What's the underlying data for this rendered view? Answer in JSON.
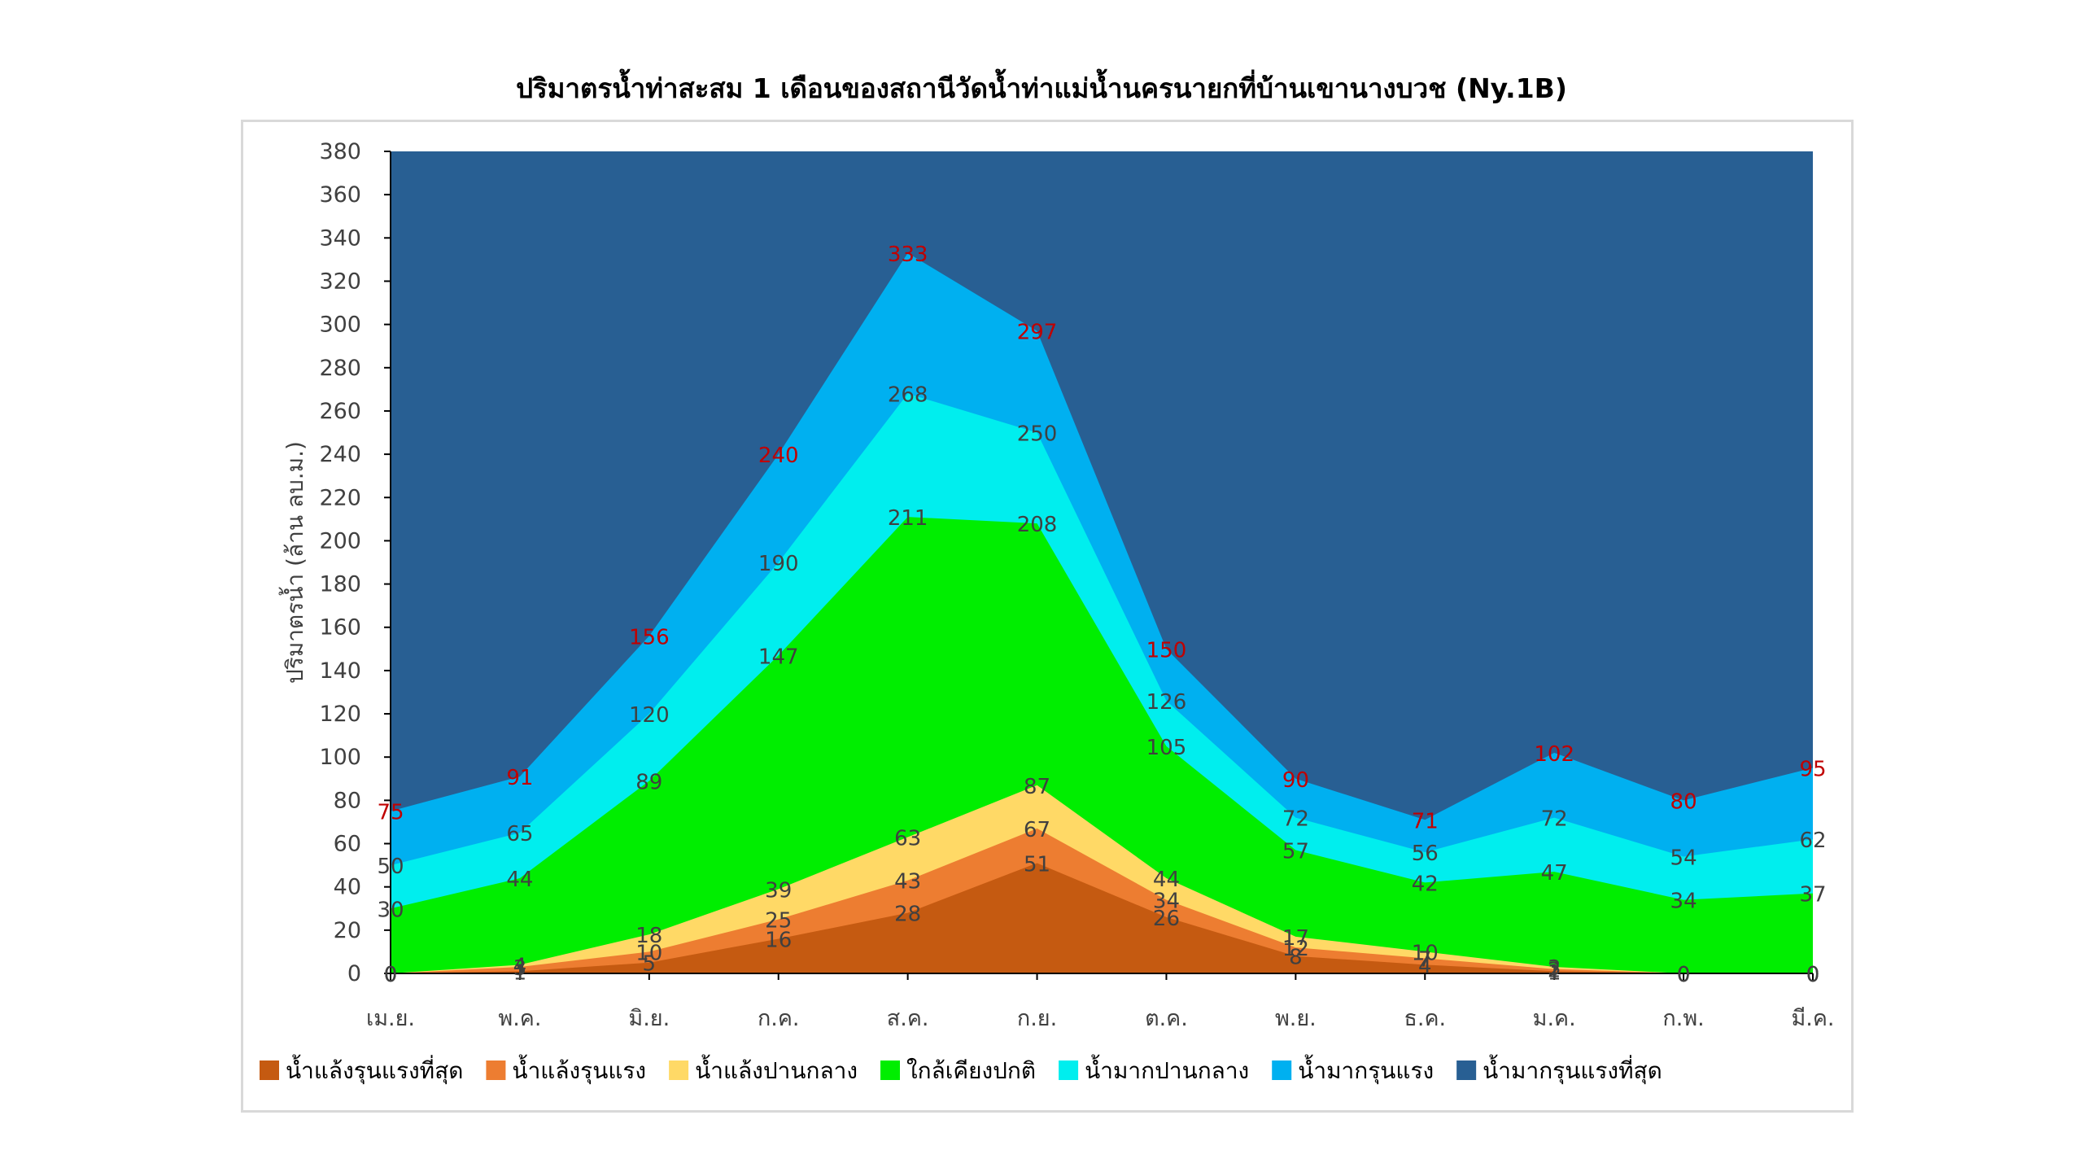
{
  "chart_data": {
    "type": "area",
    "stacked": true,
    "title": "ปริมาตรน้ำท่าสะสม 1 เดือนของสถานีวัดน้ำท่าแม่น้ำนครนายกที่บ้านเขานางบวช (Ny.1B)",
    "ylabel": "ปริมาตรน้ำ (ล้าน ลบ.ม.)",
    "xlabel": "",
    "ylim": [
      0,
      380
    ],
    "yticks": [
      0,
      20,
      40,
      60,
      80,
      100,
      120,
      140,
      160,
      180,
      200,
      220,
      240,
      260,
      280,
      300,
      320,
      340,
      360,
      380
    ],
    "categories": [
      "เม.ย.",
      "พ.ค.",
      "มิ.ย.",
      "ก.ค.",
      "ส.ค.",
      "ก.ย.",
      "ต.ค.",
      "พ.ย.",
      "ธ.ค.",
      "ม.ค.",
      "ก.พ.",
      "มี.ค."
    ],
    "legend_position": "bottom",
    "grid": false,
    "series": [
      {
        "name": "น้ำแล้งรุนแรงที่สุด",
        "color": "#c55a11",
        "label_color": "#404040",
        "values": [
          0,
          1,
          5,
          16,
          28,
          51,
          26,
          8,
          4,
          1,
          0,
          0
        ]
      },
      {
        "name": "น้ำแล้งรุนแรง",
        "color": "#ed7d31",
        "label_color": "#404040",
        "values": [
          0,
          3,
          10,
          25,
          43,
          67,
          34,
          12,
          7,
          2,
          0,
          0
        ]
      },
      {
        "name": "น้ำแล้งปานกลาง",
        "color": "#ffd966",
        "label_color": "#404040",
        "values": [
          0,
          4,
          18,
          39,
          63,
          87,
          44,
          17,
          10,
          3,
          0,
          0
        ]
      },
      {
        "name": "ใกล้เคียงปกติ",
        "color": "#00ee00",
        "label_color": "#404040",
        "values": [
          30,
          44,
          89,
          147,
          211,
          208,
          105,
          57,
          42,
          47,
          34,
          37
        ]
      },
      {
        "name": "น้ำมากปานกลาง",
        "color": "#00eeee",
        "label_color": "#404040",
        "values": [
          50,
          65,
          120,
          190,
          268,
          250,
          126,
          72,
          56,
          72,
          54,
          62
        ]
      },
      {
        "name": "น้ำมากรุนแรง",
        "color": "#00b0f0",
        "label_color": "#c00000",
        "values": [
          75,
          91,
          156,
          240,
          333,
          297,
          150,
          90,
          71,
          102,
          80,
          95
        ]
      },
      {
        "name": "น้ำมากรุนแรงที่สุด",
        "color": "#285f93",
        "label_color": "#404040",
        "values": [
          380,
          380,
          380,
          380,
          380,
          380,
          380,
          380,
          380,
          380,
          380,
          380
        ]
      }
    ]
  }
}
